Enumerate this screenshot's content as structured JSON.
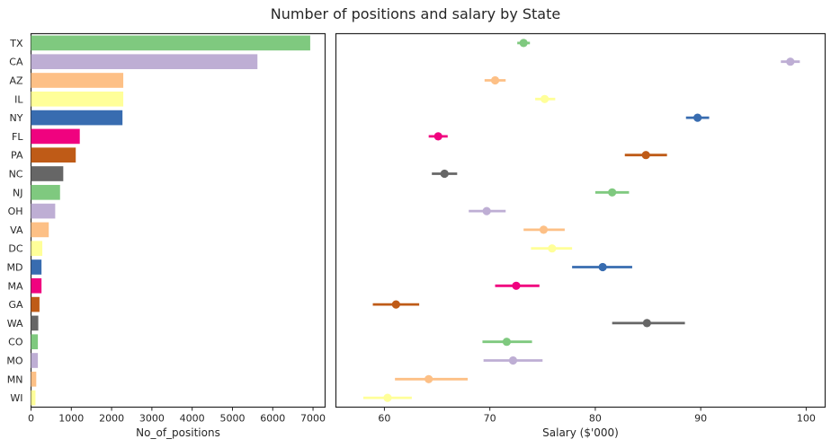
{
  "title": "Number of positions and salary by State",
  "palette": [
    "#7fc97f",
    "#beaed4",
    "#fdc086",
    "#ffff99",
    "#386cb0",
    "#f0027f",
    "#bf5b17",
    "#666666"
  ],
  "chart_data": [
    {
      "type": "bar",
      "orientation": "horizontal",
      "categories": [
        "TX",
        "CA",
        "AZ",
        "IL",
        "NY",
        "FL",
        "PA",
        "NC",
        "NJ",
        "OH",
        "VA",
        "DC",
        "MD",
        "MA",
        "GA",
        "WA",
        "CO",
        "MO",
        "MN",
        "WI"
      ],
      "values": [
        6930,
        5620,
        2290,
        2290,
        2270,
        1210,
        1110,
        800,
        720,
        600,
        440,
        280,
        260,
        260,
        210,
        180,
        170,
        170,
        130,
        110
      ],
      "xlabel": "No_of_positions",
      "ylabel": "",
      "xlim": [
        0,
        7300
      ],
      "xticks": [
        0,
        1000,
        2000,
        3000,
        4000,
        5000,
        6000,
        7000
      ]
    },
    {
      "type": "scatter",
      "style": "pointplot",
      "categories": [
        "TX",
        "CA",
        "AZ",
        "IL",
        "NY",
        "FL",
        "PA",
        "NC",
        "NJ",
        "OH",
        "VA",
        "DC",
        "MD",
        "MA",
        "GA",
        "WA",
        "CO",
        "MO",
        "MN",
        "WI"
      ],
      "values": [
        73.2,
        98.5,
        70.5,
        75.2,
        89.7,
        65.1,
        84.8,
        65.7,
        81.6,
        69.7,
        75.1,
        75.9,
        80.7,
        72.5,
        61.1,
        84.9,
        71.6,
        72.2,
        64.2,
        60.3
      ],
      "ci_low": [
        72.6,
        97.6,
        69.5,
        74.3,
        88.6,
        64.2,
        82.8,
        64.5,
        80.0,
        68.0,
        73.2,
        73.9,
        77.8,
        70.5,
        58.9,
        81.6,
        69.3,
        69.4,
        61.0,
        58.0
      ],
      "ci_high": [
        73.8,
        99.4,
        71.5,
        76.2,
        90.8,
        66.0,
        86.8,
        66.9,
        83.2,
        71.5,
        77.1,
        77.8,
        83.5,
        74.7,
        63.3,
        88.5,
        74.0,
        75.0,
        67.9,
        62.6
      ],
      "xlabel": "Salary ($'000)",
      "ylabel": "",
      "xlim": [
        55.4,
        101.8
      ],
      "xticks": [
        60,
        70,
        80,
        90,
        100
      ]
    }
  ]
}
